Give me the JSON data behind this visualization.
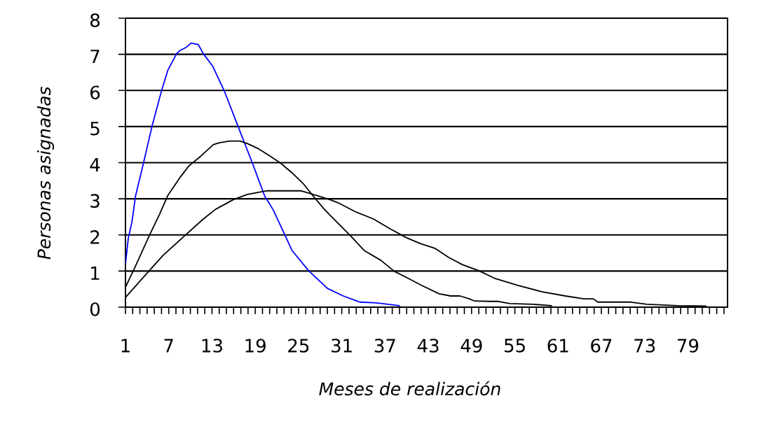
{
  "chart_data": {
    "type": "line",
    "xlabel": "Meses de realización",
    "ylabel": "Personas asignadas",
    "xlim": [
      1,
      84.5
    ],
    "ylim": [
      0,
      8
    ],
    "xticks": [
      1,
      {
        "value": 2,
        "label": null
      },
      {
        "value": 3,
        "label": null
      },
      {
        "value": 4,
        "label": null
      },
      {
        "value": 5,
        "label": null
      },
      {
        "value": 6,
        "label": null
      },
      7,
      {
        "value": 8,
        "label": null
      },
      {
        "value": 9,
        "label": null
      },
      {
        "value": 10,
        "label": null
      },
      {
        "value": 11,
        "label": null
      },
      {
        "value": 12,
        "label": null
      },
      13,
      {
        "value": 14,
        "label": null
      },
      {
        "value": 15,
        "label": null
      },
      {
        "value": 16,
        "label": null
      },
      {
        "value": 17,
        "label": null
      },
      {
        "value": 18,
        "label": null
      },
      19,
      {
        "value": 20,
        "label": null
      },
      {
        "value": 21,
        "label": null
      },
      {
        "value": 22,
        "label": null
      },
      {
        "value": 23,
        "label": null
      },
      {
        "value": 24,
        "label": null
      },
      25,
      {
        "value": 26,
        "label": null
      },
      {
        "value": 27,
        "label": null
      },
      {
        "value": 28,
        "label": null
      },
      {
        "value": 29,
        "label": null
      },
      {
        "value": 30,
        "label": null
      },
      31,
      {
        "value": 32,
        "label": null
      },
      {
        "value": 33,
        "label": null
      },
      {
        "value": 34,
        "label": null
      },
      {
        "value": 35,
        "label": null
      },
      {
        "value": 36,
        "label": null
      },
      37,
      {
        "value": 38,
        "label": null
      },
      {
        "value": 39,
        "label": null
      },
      {
        "value": 40,
        "label": null
      },
      {
        "value": 41,
        "label": null
      },
      {
        "value": 42,
        "label": null
      },
      43,
      {
        "value": 44,
        "label": null
      },
      {
        "value": 45,
        "label": null
      },
      {
        "value": 46,
        "label": null
      },
      {
        "value": 47,
        "label": null
      },
      {
        "value": 48,
        "label": null
      },
      49,
      {
        "value": 50,
        "label": null
      },
      {
        "value": 51,
        "label": null
      },
      {
        "value": 52,
        "label": null
      },
      {
        "value": 53,
        "label": null
      },
      {
        "value": 54,
        "label": null
      },
      55,
      {
        "value": 56,
        "label": null
      },
      {
        "value": 57,
        "label": null
      },
      {
        "value": 58,
        "label": null
      },
      {
        "value": 59,
        "label": null
      },
      {
        "value": 60,
        "label": null
      },
      61,
      {
        "value": 62,
        "label": null
      },
      {
        "value": 63,
        "label": null
      },
      {
        "value": 64,
        "label": null
      },
      {
        "value": 65,
        "label": null
      },
      {
        "value": 66,
        "label": null
      },
      67,
      {
        "value": 68,
        "label": null
      },
      {
        "value": 69,
        "label": null
      },
      {
        "value": 70,
        "label": null
      },
      {
        "value": 71,
        "label": null
      },
      {
        "value": 72,
        "label": null
      },
      73,
      {
        "value": 74,
        "label": null
      },
      {
        "value": 75,
        "label": null
      },
      {
        "value": 76,
        "label": null
      },
      {
        "value": 77,
        "label": null
      },
      {
        "value": 78,
        "label": null
      },
      79,
      {
        "value": 80,
        "label": null
      },
      {
        "value": 81,
        "label": null
      },
      {
        "value": 82,
        "label": null
      },
      {
        "value": 83,
        "label": null
      },
      {
        "value": 84,
        "label": null
      }
    ],
    "yticks": [
      0,
      1,
      2,
      3,
      4,
      5,
      6,
      7,
      8
    ],
    "grid": "y",
    "line_style": "solid",
    "series": [
      {
        "color": "#0000ff",
        "x": [
          1,
          1.4,
          1.9,
          2.4,
          3.5,
          4.7,
          6,
          6.9,
          8.1,
          8.6,
          9.4,
          10.1,
          11.1,
          11.8,
          13.1,
          14.7,
          16.7,
          18.6,
          20.3,
          21.5,
          23.2,
          24.1,
          26.4,
          29,
          31.2,
          33.5,
          35.8,
          39
        ],
        "values": [
          1.2,
          1.92,
          2.36,
          3.08,
          3.99,
          5.02,
          5.99,
          6.57,
          7.02,
          7.11,
          7.19,
          7.31,
          7.27,
          7.02,
          6.67,
          5.99,
          4.96,
          3.99,
          3.08,
          2.69,
          1.96,
          1.57,
          1.01,
          0.52,
          0.31,
          0.14,
          0.12,
          0.04
        ]
      },
      {
        "color": "#000000",
        "x": [
          1,
          2.4,
          4.3,
          5.7,
          6.9,
          8.6,
          9.8,
          11.5,
          13.2,
          14,
          15.4,
          16.9,
          17.9,
          19.3,
          21,
          22.5,
          24.1,
          25.7,
          27.1,
          28.5,
          29.3,
          32.2,
          34.1,
          36.4,
          38.3,
          40.3,
          41.9,
          44.5,
          46.1,
          47.4,
          48.7,
          49.4,
          51.6,
          52.6,
          54.3,
          57.5,
          60.1
        ],
        "values": [
          0.55,
          1.14,
          1.98,
          2.56,
          3.1,
          3.6,
          3.91,
          4.19,
          4.5,
          4.55,
          4.6,
          4.6,
          4.53,
          4.4,
          4.19,
          3.99,
          3.72,
          3.41,
          3.06,
          2.73,
          2.56,
          1.98,
          1.57,
          1.3,
          0.99,
          0.79,
          0.62,
          0.37,
          0.31,
          0.31,
          0.23,
          0.17,
          0.16,
          0.16,
          0.1,
          0.08,
          0.04
        ]
      },
      {
        "color": "#000000",
        "x": [
          1,
          4.3,
          6.2,
          8.9,
          11.8,
          13.5,
          16,
          17.9,
          20.5,
          25.4,
          26.7,
          29.3,
          30.5,
          32.9,
          35.4,
          37.7,
          40,
          41.9,
          43.9,
          45.8,
          47.7,
          50,
          52.3,
          55.5,
          58.7,
          62,
          64.6,
          65.9,
          66.5,
          71.1,
          73.3,
          77.6,
          81.5
        ],
        "values": [
          0.27,
          1.01,
          1.43,
          1.92,
          2.44,
          2.71,
          2.98,
          3.12,
          3.22,
          3.22,
          3.14,
          2.98,
          2.89,
          2.64,
          2.44,
          2.17,
          1.92,
          1.76,
          1.63,
          1.38,
          1.18,
          1.01,
          0.79,
          0.6,
          0.43,
          0.31,
          0.23,
          0.23,
          0.14,
          0.14,
          0.08,
          0.04,
          0.03
        ]
      }
    ]
  }
}
